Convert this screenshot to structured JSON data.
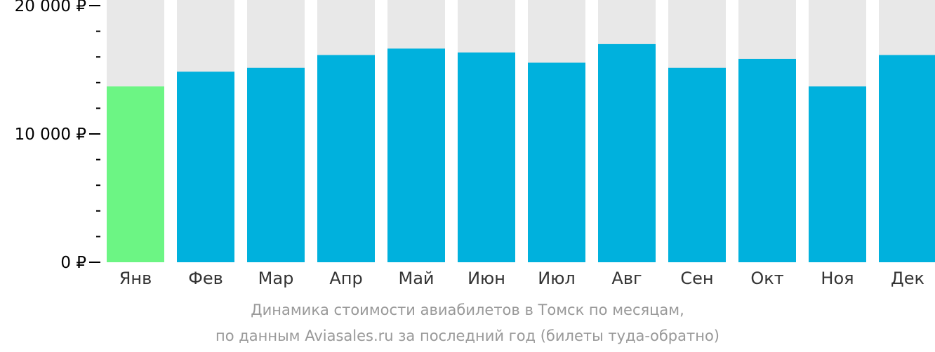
{
  "chart_data": {
    "type": "bar",
    "categories": [
      "Янв",
      "Фев",
      "Мар",
      "Апр",
      "Май",
      "Июн",
      "Июл",
      "Авг",
      "Сен",
      "Окт",
      "Ноя",
      "Дек"
    ],
    "values": [
      13700,
      14850,
      15150,
      16150,
      16650,
      16350,
      15550,
      17000,
      15150,
      15850,
      13700,
      16150
    ],
    "ylim": [
      0,
      20000
    ],
    "y_ticks": [
      {
        "value": 0,
        "label": "0 ₽"
      },
      {
        "value": 10000,
        "label": "10 000 ₽"
      },
      {
        "value": 20000,
        "label": "20 000 ₽"
      }
    ],
    "y_minor_step": 2000,
    "highlight_index": 0,
    "colors": {
      "bar": "#00b1dd",
      "highlight": "#6cf584",
      "background_bar": "#e8e8e8",
      "axis": "#000000",
      "tick_label": "#000000",
      "category_label": "#333333",
      "caption": "#999999"
    },
    "caption_line1": "Динамика стоимости авиабилетов в Томск по месяцам,",
    "caption_line2": "по данным Aviasales.ru за последний год (билеты туда-обратно)"
  }
}
